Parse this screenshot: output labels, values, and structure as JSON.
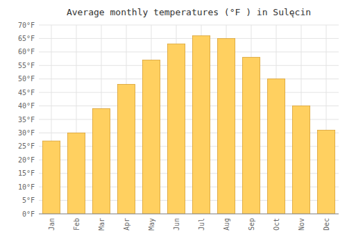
{
  "chart_data": {
    "type": "bar",
    "title": "Average monthly temperatures (°F ) in Sulęcin",
    "categories": [
      "Jan",
      "Feb",
      "Mar",
      "Apr",
      "May",
      "Jun",
      "Jul",
      "Aug",
      "Sep",
      "Oct",
      "Nov",
      "Dec"
    ],
    "values": [
      27,
      30,
      39,
      48,
      57,
      63,
      66,
      65,
      58,
      50,
      40,
      31
    ],
    "color": "#FFD060",
    "ylim": [
      0,
      70
    ],
    "yticks": [
      {
        "value": 0,
        "label": "0°F"
      },
      {
        "value": 5,
        "label": "5°F"
      },
      {
        "value": 10,
        "label": "10°F"
      },
      {
        "value": 15,
        "label": "15°F"
      },
      {
        "value": 20,
        "label": "20°F"
      },
      {
        "value": 25,
        "label": "25°F"
      },
      {
        "value": 30,
        "label": "30°F"
      },
      {
        "value": 35,
        "label": "35°F"
      },
      {
        "value": 40,
        "label": "40°F"
      },
      {
        "value": 45,
        "label": "45°F"
      },
      {
        "value": 50,
        "label": "50°F"
      },
      {
        "value": 55,
        "label": "55°F"
      },
      {
        "value": 60,
        "label": "60°F"
      },
      {
        "value": 65,
        "label": "65°F"
      },
      {
        "value": 70,
        "label": "70°F"
      }
    ],
    "grid": true
  }
}
